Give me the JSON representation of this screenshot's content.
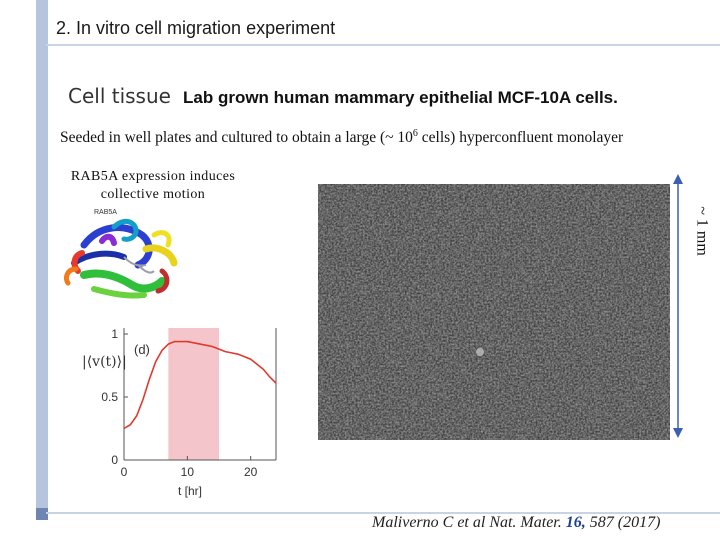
{
  "slide": {
    "title": "2. In vitro cell migration experiment",
    "cell_tissue_key": "Cell tissue",
    "cell_tissue_value": "Lab grown human mammary epithelial MCF-10A cells.",
    "seeded_pre": "Seeded in well plates and cultured to obtain a large (~ 10",
    "seeded_sup": "6",
    "seeded_post": " cells) hyperconfluent monolayer",
    "rab_line1": "RAB5A expression induces",
    "rab_line2": "collective motion",
    "protein_label": "RAB5A",
    "scale_label": "~ 1 mm",
    "citation_pre": "Maliverno C et al  Nat. Mater. ",
    "citation_vol": "16,",
    "citation_post": " 587 (2017)"
  },
  "chart_data": {
    "type": "line",
    "panel_label": "(d)",
    "ylabel": "|⟨v(t)⟩|",
    "xlabel": "t [hr]",
    "x_ticks": [
      "0",
      "10",
      "20"
    ],
    "y_ticks": [
      "0",
      "0.5",
      "1"
    ],
    "xlim": [
      0,
      24
    ],
    "ylim": [
      0,
      1
    ],
    "shaded_region": [
      7,
      15
    ],
    "shade_color": "#f4c6cb",
    "line_color": "#e03a2e",
    "series": [
      {
        "x": [
          0,
          1,
          2,
          3,
          4,
          5,
          6,
          7,
          8,
          9,
          10,
          11,
          12,
          13,
          14,
          15,
          16,
          17,
          18,
          19,
          20,
          21,
          22,
          23,
          24
        ],
        "y": [
          0.25,
          0.28,
          0.35,
          0.48,
          0.64,
          0.78,
          0.87,
          0.92,
          0.94,
          0.94,
          0.94,
          0.93,
          0.92,
          0.91,
          0.9,
          0.88,
          0.86,
          0.85,
          0.84,
          0.82,
          0.8,
          0.76,
          0.72,
          0.66,
          0.61
        ]
      }
    ]
  }
}
